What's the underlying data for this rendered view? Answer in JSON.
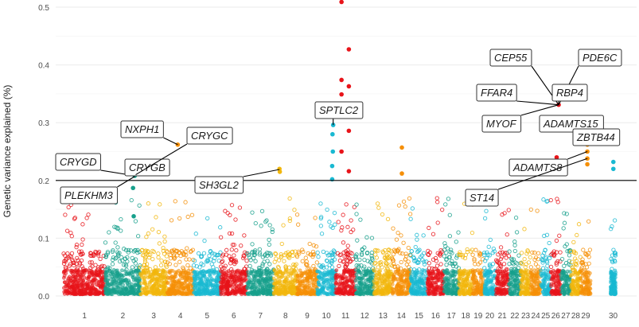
{
  "chart_data": {
    "type": "scatter",
    "subtype": "manhattan",
    "title": "",
    "xlabel": "",
    "ylabel": "Genetic variance explained (%)",
    "ylim": [
      -0.01,
      0.52
    ],
    "yticks": [
      0.0,
      0.1,
      0.2,
      0.3,
      0.4,
      0.5
    ],
    "ytick_labels": [
      "0.0",
      "0.1",
      "0.2",
      "0.3",
      "0.4",
      "0.5"
    ],
    "threshold": 0.2,
    "palette": [
      "#e8141a",
      "#17a08c",
      "#f2b70c",
      "#f58f07",
      "#19b9d2"
    ],
    "chromosomes": [
      {
        "label": "1",
        "start": 0,
        "end": 1.25
      },
      {
        "label": "2",
        "start": 1.25,
        "end": 2.3
      },
      {
        "label": "3",
        "start": 2.3,
        "end": 3.1
      },
      {
        "label": "4",
        "start": 3.1,
        "end": 3.9
      },
      {
        "label": "5",
        "start": 3.9,
        "end": 4.7
      },
      {
        "label": "6",
        "start": 4.7,
        "end": 5.5
      },
      {
        "label": "7",
        "start": 5.5,
        "end": 6.3
      },
      {
        "label": "8",
        "start": 6.3,
        "end": 7.0
      },
      {
        "label": "9",
        "start": 7.0,
        "end": 7.6
      },
      {
        "label": "10",
        "start": 7.6,
        "end": 8.15
      },
      {
        "label": "11",
        "start": 8.15,
        "end": 8.75
      },
      {
        "label": "12",
        "start": 8.75,
        "end": 9.3
      },
      {
        "label": "13",
        "start": 9.3,
        "end": 9.85
      },
      {
        "label": "14",
        "start": 9.85,
        "end": 10.4
      },
      {
        "label": "15",
        "start": 10.4,
        "end": 10.9
      },
      {
        "label": "16",
        "start": 10.9,
        "end": 11.4
      },
      {
        "label": "17",
        "start": 11.4,
        "end": 11.85
      },
      {
        "label": "18",
        "start": 11.85,
        "end": 12.25
      },
      {
        "label": "19",
        "start": 12.25,
        "end": 12.6
      },
      {
        "label": "20",
        "start": 12.6,
        "end": 12.95
      },
      {
        "label": "21",
        "start": 12.95,
        "end": 13.35
      },
      {
        "label": "22",
        "start": 13.35,
        "end": 13.7
      },
      {
        "label": "23",
        "start": 13.7,
        "end": 14.0
      },
      {
        "label": "24",
        "start": 14.0,
        "end": 14.3
      },
      {
        "label": "25",
        "start": 14.3,
        "end": 14.6
      },
      {
        "label": "26",
        "start": 14.6,
        "end": 14.9
      },
      {
        "label": "27",
        "start": 14.9,
        "end": 15.2
      },
      {
        "label": "28",
        "start": 15.2,
        "end": 15.5
      },
      {
        "label": "29",
        "start": 15.5,
        "end": 15.8
      },
      {
        "label": "30",
        "start": 16.4,
        "end": 16.55
      }
    ],
    "significant_points": [
      {
        "chr": "2",
        "x": 2.13,
        "y": 0.208,
        "color": "#17a08c"
      },
      {
        "chr": "2",
        "x": 2.18,
        "y": 0.212,
        "color": "#17a08c"
      },
      {
        "chr": "2",
        "x": 2.08,
        "y": 0.187,
        "color": "#17a08c"
      },
      {
        "chr": "2",
        "x": 2.1,
        "y": 0.138,
        "color": "#17a08c"
      },
      {
        "chr": "4",
        "x": 3.42,
        "y": 0.262,
        "color": "#f58f07"
      },
      {
        "chr": "8",
        "x": 6.47,
        "y": 0.22,
        "color": "#f2b70c"
      },
      {
        "chr": "8",
        "x": 6.48,
        "y": 0.215,
        "color": "#f2b70c"
      },
      {
        "chr": "10",
        "x": 8.08,
        "y": 0.296,
        "color": "#19b9d2"
      },
      {
        "chr": "10",
        "x": 8.06,
        "y": 0.28,
        "color": "#19b9d2"
      },
      {
        "chr": "10",
        "x": 8.07,
        "y": 0.25,
        "color": "#19b9d2"
      },
      {
        "chr": "10",
        "x": 8.05,
        "y": 0.225,
        "color": "#19b9d2"
      },
      {
        "chr": "10",
        "x": 8.05,
        "y": 0.202,
        "color": "#19b9d2"
      },
      {
        "chr": "11",
        "x": 8.33,
        "y": 0.509,
        "color": "#e8141a"
      },
      {
        "chr": "11",
        "x": 8.55,
        "y": 0.427,
        "color": "#e8141a"
      },
      {
        "chr": "11",
        "x": 8.33,
        "y": 0.374,
        "color": "#e8141a"
      },
      {
        "chr": "11",
        "x": 8.55,
        "y": 0.363,
        "color": "#e8141a"
      },
      {
        "chr": "11",
        "x": 8.33,
        "y": 0.349,
        "color": "#e8141a"
      },
      {
        "chr": "11",
        "x": 8.55,
        "y": 0.286,
        "color": "#e8141a"
      },
      {
        "chr": "11",
        "x": 8.33,
        "y": 0.25,
        "color": "#e8141a"
      },
      {
        "chr": "11",
        "x": 8.55,
        "y": 0.216,
        "color": "#e8141a"
      },
      {
        "chr": "14",
        "x": 10.14,
        "y": 0.257,
        "color": "#f58f07"
      },
      {
        "chr": "14",
        "x": 10.14,
        "y": 0.212,
        "color": "#f58f07"
      },
      {
        "chr": "26",
        "x": 14.84,
        "y": 0.331,
        "color": "#e8141a"
      },
      {
        "chr": "26",
        "x": 14.78,
        "y": 0.24,
        "color": "#e8141a"
      },
      {
        "chr": "29",
        "x": 15.7,
        "y": 0.262,
        "color": "#f58f07"
      },
      {
        "chr": "29",
        "x": 15.7,
        "y": 0.25,
        "color": "#f58f07"
      },
      {
        "chr": "29",
        "x": 15.7,
        "y": 0.238,
        "color": "#f58f07"
      },
      {
        "chr": "29",
        "x": 15.7,
        "y": 0.228,
        "color": "#f58f07"
      },
      {
        "chr": "30",
        "x": 16.48,
        "y": 0.232,
        "color": "#19b9d2"
      },
      {
        "chr": "30",
        "x": 16.48,
        "y": 0.22,
        "color": "#19b9d2"
      }
    ],
    "gene_labels": [
      {
        "gene": "NXPH1",
        "point_x": 3.42,
        "point_y": 0.262
      },
      {
        "gene": "CRYGD",
        "point_x": 2.14,
        "point_y": 0.208
      },
      {
        "gene": "CRYGB",
        "point_x": 2.17,
        "point_y": 0.208
      },
      {
        "gene": "CRYGC",
        "point_x": 2.16,
        "point_y": 0.21
      },
      {
        "gene": "PLEKHM3",
        "point_x": 2.13,
        "point_y": 0.207
      },
      {
        "gene": "SH3GL2",
        "point_x": 6.47,
        "point_y": 0.219
      },
      {
        "gene": "SPTLC2",
        "point_x": 8.08,
        "point_y": 0.296
      },
      {
        "gene": "CEP55",
        "point_x": 14.84,
        "point_y": 0.331
      },
      {
        "gene": "PDE6C",
        "point_x": 14.84,
        "point_y": 0.331
      },
      {
        "gene": "FFAR4",
        "point_x": 14.84,
        "point_y": 0.331
      },
      {
        "gene": "RBP4",
        "point_x": 14.84,
        "point_y": 0.331
      },
      {
        "gene": "MYOF",
        "point_x": 14.84,
        "point_y": 0.331
      },
      {
        "gene": "ADAMTS15",
        "point_x": 15.7,
        "point_y": 0.262
      },
      {
        "gene": "ZBTB44",
        "point_x": 15.7,
        "point_y": 0.262
      },
      {
        "gene": "ADAMTS8",
        "point_x": 15.7,
        "point_y": 0.25
      },
      {
        "gene": "ST14",
        "point_x": 15.7,
        "point_y": 0.238
      }
    ]
  }
}
